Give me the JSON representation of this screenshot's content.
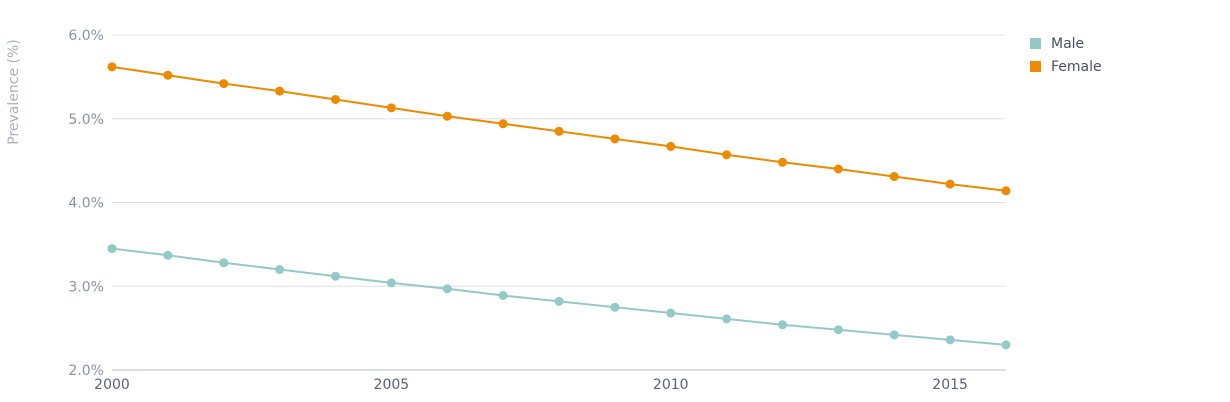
{
  "chart_data": {
    "type": "line",
    "title": "",
    "xlabel": "",
    "ylabel": "Prevalence (%)",
    "x": [
      2000,
      2001,
      2002,
      2003,
      2004,
      2005,
      2006,
      2007,
      2008,
      2009,
      2010,
      2011,
      2012,
      2013,
      2014,
      2015,
      2016
    ],
    "x_ticks": [
      "2000",
      "2005",
      "2010",
      "2015"
    ],
    "y_ticks": [
      "2.0%",
      "3.0%",
      "4.0%",
      "5.0%",
      "6.0%"
    ],
    "ylim": [
      2.0,
      6.0
    ],
    "xlim": [
      2000,
      2016
    ],
    "grid": true,
    "legend_position": "top-right",
    "series": [
      {
        "name": "Male",
        "color": "#93cac8",
        "values": [
          3.45,
          3.37,
          3.28,
          3.2,
          3.12,
          3.04,
          2.97,
          2.89,
          2.82,
          2.75,
          2.68,
          2.61,
          2.54,
          2.48,
          2.42,
          2.36,
          2.3
        ]
      },
      {
        "name": "Female",
        "color": "#ee8a00",
        "values": [
          5.62,
          5.52,
          5.42,
          5.33,
          5.23,
          5.13,
          5.03,
          4.94,
          4.85,
          4.76,
          4.67,
          4.57,
          4.48,
          4.4,
          4.31,
          4.22,
          4.14
        ]
      }
    ]
  }
}
